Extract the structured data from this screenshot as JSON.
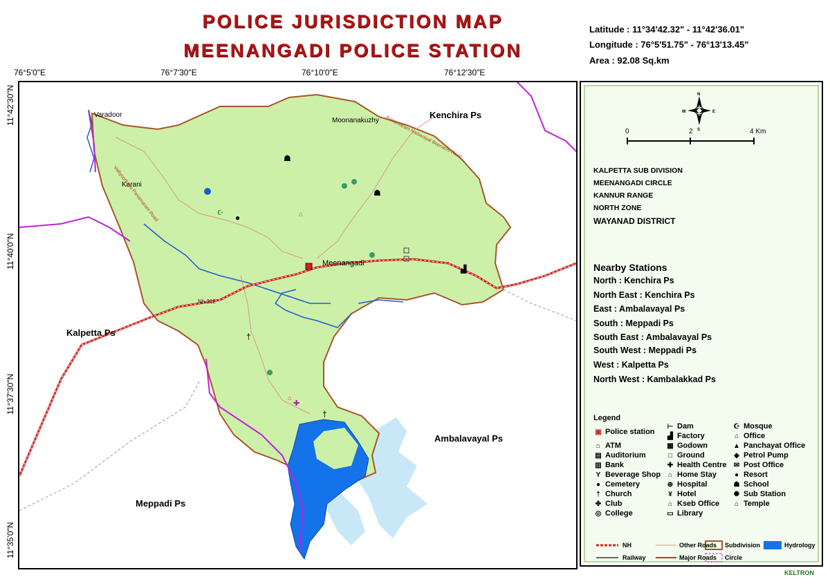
{
  "title": {
    "line1": "POLICE JURISDICTION MAP",
    "line2": "MEENANGADI POLICE STATION"
  },
  "info": {
    "latitude": "Latitude : 11°34'42.32\"  -  11°42'36.01\"",
    "longitude": "Longitude : 76°5'51.75\"  -  76°13'13.45\"",
    "area": "Area : 92.08 Sq.km"
  },
  "ticks": {
    "x": [
      "76°5'0\"E",
      "76°7'30\"E",
      "76°10'0\"E",
      "76°12'30\"E"
    ],
    "y": [
      "11°42'30\"N",
      "11°40'0\"N",
      "11°37'30\"N",
      "11°35'0\"N"
    ]
  },
  "map_labels": {
    "kenchira": "Kenchira Ps",
    "kalpetta": "Kalpetta Ps",
    "ambalavayal": "Ambalavayal Ps",
    "meppadi": "Meppadi Ps",
    "meenangadi": "Meenangadi",
    "moonanakuzhy": "Moonanakuzhy",
    "varadoor": "Varadoor",
    "karani": "Karani",
    "nh": "Nh 212",
    "road1": "Valliyoorkavu Panamaram Road",
    "road2": "Panamaram Nadavayal Beenachi Road"
  },
  "compass": {
    "n": "N",
    "s": "S",
    "e": "E",
    "w": "W"
  },
  "scale": {
    "l0": "0",
    "l2": "2",
    "l4": "4 Km"
  },
  "admin": [
    "KALPETTA SUB DIVISION",
    "MEENANGADI CIRCLE",
    "KANNUR RANGE",
    "NORTH ZONE",
    "WAYANAD  DISTRICT"
  ],
  "nearby": {
    "heading": "Nearby Stations",
    "items": [
      "North : Kenchira Ps",
      "North East : Kenchira Ps",
      "East : Ambalavayal Ps",
      "South : Meppadi Ps",
      "South East : Ambalavayal Ps",
      "South West : Meppadi Ps",
      "West : Kalpetta Ps",
      "North West : Kambalakkad Ps"
    ]
  },
  "legend": {
    "heading": "Legend",
    "police": "Police station",
    "col1": [
      "ATM",
      "Auditorium",
      "Bank",
      "Beverage Shop",
      "Cemetery",
      "Church",
      "Club",
      "College"
    ],
    "col2": [
      "Dam",
      "Factory",
      "Godown",
      "Ground",
      "Health Centre",
      "Home Stay",
      "Hospital",
      "Hotel",
      "Kseb Office",
      "Library"
    ],
    "col3": [
      "Mosque",
      "Office",
      "Panchayat Office",
      "Petrol Pump",
      "Post Office",
      "Resort",
      "School",
      "Sub Station",
      "Temple"
    ],
    "icons1": [
      "atm-icon",
      "auditorium-icon",
      "bank-icon",
      "beverage-shop-icon",
      "cemetery-icon",
      "church-icon",
      "club-icon",
      "college-icon"
    ],
    "icons2": [
      "dam-icon",
      "factory-icon",
      "godown-icon",
      "ground-icon",
      "health-centre-icon",
      "home-stay-icon",
      "hospital-icon",
      "hotel-icon",
      "kseb-office-icon",
      "library-icon"
    ],
    "icons3": [
      "mosque-icon",
      "office-icon",
      "panchayat-office-icon",
      "petrol-pump-icon",
      "post-office-icon",
      "resort-icon",
      "school-icon",
      "sub-station-icon",
      "temple-icon"
    ],
    "lines": {
      "nh": "NH",
      "railway": "Railway",
      "other_roads": "Other Roads",
      "major_roads": "Major Roads",
      "subdivision": "Subdivision",
      "circle": "Circle",
      "hydrology": "Hydrology"
    }
  },
  "credit": "KELTRON",
  "colors": {
    "title": "#b01414",
    "region": "#ccf0a8",
    "border": "#a8542a",
    "water": "#1473ea",
    "light_water": "#c8e8f8",
    "circle": "#c020d8",
    "nh": "#d02020"
  }
}
